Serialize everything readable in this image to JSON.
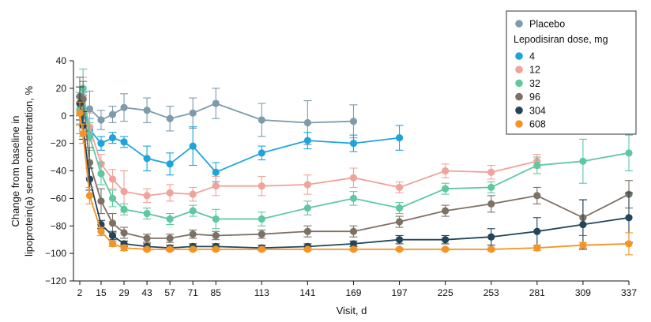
{
  "chart_data": {
    "type": "line",
    "xlabel": "Visit, d",
    "ylabel_lines": [
      "Change from baseline in",
      "lipoprotein(a) serum concentration, %"
    ],
    "ylim": [
      -120,
      40
    ],
    "yticks": [
      40,
      20,
      0,
      -20,
      -40,
      -60,
      -80,
      -100,
      -120
    ],
    "xticks": [
      2,
      15,
      29,
      43,
      57,
      71,
      85,
      113,
      141,
      169,
      197,
      225,
      253,
      281,
      309,
      337
    ],
    "xlim": [
      2,
      337
    ],
    "grid": false,
    "legend": {
      "placement": "top-right",
      "group_title": "Lepodisiran dose, mg"
    },
    "series": [
      {
        "name": "Placebo",
        "color": "#7f9bab",
        "x": [
          2,
          4,
          8,
          15,
          22,
          29,
          43,
          57,
          71,
          85,
          113,
          141,
          169
        ],
        "y": [
          2,
          0,
          5,
          -3,
          1,
          6,
          4,
          -2,
          2,
          9,
          -3,
          -5,
          -4
        ],
        "err": [
          15,
          15,
          13,
          7,
          6,
          10,
          9,
          9,
          11,
          11,
          12,
          16,
          12
        ]
      },
      {
        "name": "4",
        "color": "#1fa3dd",
        "x": [
          2,
          4,
          8,
          15,
          22,
          29,
          43,
          57,
          71,
          85,
          113,
          141,
          169,
          197
        ],
        "y": [
          4,
          5,
          -10,
          -20,
          -16,
          -19,
          -31,
          -35,
          -22,
          -41,
          -27,
          -18,
          -20,
          -16
        ],
        "err": [
          10,
          12,
          8,
          5,
          4,
          4,
          9,
          8,
          14,
          7,
          5,
          6,
          6,
          9
        ]
      },
      {
        "name": "12",
        "color": "#f0a39b",
        "x": [
          2,
          4,
          8,
          15,
          22,
          29,
          43,
          57,
          71,
          85,
          113,
          141,
          169,
          197,
          225,
          253,
          281
        ],
        "y": [
          5,
          14,
          -8,
          -35,
          -46,
          -55,
          -58,
          -56,
          -57,
          -51,
          -51,
          -50,
          -45,
          -52,
          -40,
          -41,
          -33
        ],
        "err": [
          12,
          14,
          10,
          7,
          7,
          15,
          5,
          6,
          5,
          7,
          7,
          7,
          7,
          4,
          5,
          5,
          5
        ]
      },
      {
        "name": "32",
        "color": "#5fc8a0",
        "x": [
          2,
          4,
          8,
          15,
          22,
          29,
          43,
          57,
          71,
          85,
          113,
          141,
          169,
          197,
          225,
          253,
          281,
          309,
          337
        ],
        "y": [
          5,
          20,
          -15,
          -42,
          -60,
          -68,
          -71,
          -75,
          -69,
          -75,
          -75,
          -67,
          -60,
          -67,
          -53,
          -52,
          -36,
          -33,
          -27
        ],
        "err": [
          12,
          14,
          10,
          8,
          6,
          4,
          4,
          4,
          4,
          7,
          5,
          5,
          5,
          4,
          4,
          4,
          6,
          16,
          13
        ]
      },
      {
        "name": "96",
        "color": "#7d7164",
        "x": [
          2,
          4,
          8,
          15,
          22,
          29,
          43,
          57,
          71,
          85,
          113,
          141,
          169,
          197,
          225,
          253,
          281,
          309,
          337
        ],
        "y": [
          14,
          12,
          -34,
          -62,
          -78,
          -85,
          -89,
          -89,
          -86,
          -87,
          -86,
          -84,
          -84,
          -77,
          -69,
          -64,
          -58,
          -74,
          -57
        ],
        "err": [
          14,
          13,
          11,
          9,
          7,
          4,
          3,
          3,
          3,
          3,
          3,
          4,
          4,
          4,
          4,
          6,
          6,
          13,
          10
        ]
      },
      {
        "name": "304",
        "color": "#24445a",
        "x": [
          2,
          4,
          8,
          15,
          22,
          29,
          43,
          57,
          71,
          85,
          113,
          141,
          169,
          197,
          225,
          253,
          281,
          309,
          337
        ],
        "y": [
          9,
          -7,
          -46,
          -79,
          -87,
          -93,
          -95,
          -96,
          -95,
          -95,
          -96,
          -95,
          -93,
          -90,
          -90,
          -88,
          -84,
          -79,
          -74
        ],
        "err": [
          12,
          10,
          8,
          3,
          3,
          2,
          2,
          2,
          2,
          2,
          2,
          2,
          2,
          3,
          3,
          6,
          10,
          18,
          18
        ]
      },
      {
        "name": "608",
        "color": "#f39424",
        "x": [
          2,
          4,
          8,
          15,
          22,
          29,
          43,
          57,
          71,
          85,
          113,
          141,
          169,
          197,
          225,
          253,
          281,
          309,
          337
        ],
        "y": [
          2,
          -13,
          -58,
          -84,
          -93,
          -96,
          -97,
          -97,
          -97,
          -97,
          -97,
          -97,
          -97,
          -97,
          -97,
          -97,
          -96,
          -94,
          -93
        ],
        "err": [
          8,
          7,
          6,
          3,
          2,
          2,
          1,
          1,
          1,
          1,
          1,
          1,
          1,
          1,
          1,
          1,
          2,
          2,
          8
        ]
      }
    ]
  }
}
